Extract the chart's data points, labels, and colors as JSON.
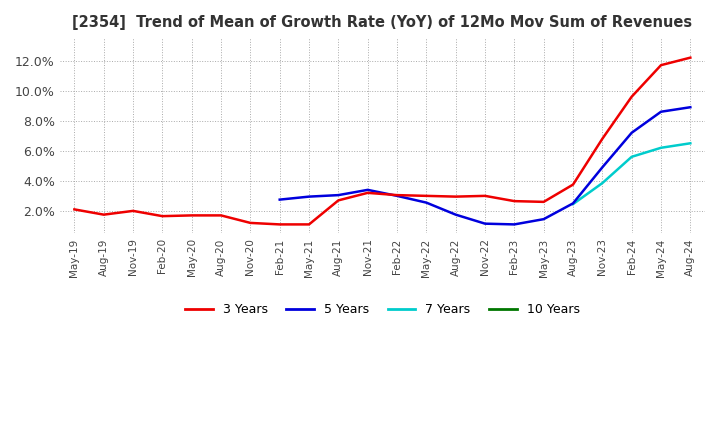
{
  "title": "[2354]  Trend of Mean of Growth Rate (YoY) of 12Mo Mov Sum of Revenues",
  "ylim": [
    0.005,
    0.135
  ],
  "yticks": [
    0.02,
    0.04,
    0.06,
    0.08,
    0.1,
    0.12
  ],
  "ytick_labels": [
    "2.0%",
    "4.0%",
    "6.0%",
    "8.0%",
    "10.0%",
    "12.0%"
  ],
  "background_color": "#ffffff",
  "grid_color": "#aaaaaa",
  "line_colors": {
    "3y": "#ee0000",
    "5y": "#0000dd",
    "7y": "#00cccc",
    "10y": "#007700"
  },
  "legend_entries": [
    "3 Years",
    "5 Years",
    "7 Years",
    "10 Years"
  ],
  "legend_colors": [
    "#ee0000",
    "#0000dd",
    "#00cccc",
    "#007700"
  ],
  "x_labels": [
    "May-19",
    "Aug-19",
    "Nov-19",
    "Feb-20",
    "May-20",
    "Aug-20",
    "Nov-20",
    "Feb-21",
    "May-21",
    "Aug-21",
    "Nov-21",
    "Feb-22",
    "May-22",
    "Aug-22",
    "Nov-22",
    "Feb-23",
    "May-23",
    "Aug-23",
    "Nov-23",
    "Feb-24",
    "May-24",
    "Aug-24"
  ],
  "series_3y": [
    0.021,
    0.0175,
    0.02,
    0.0165,
    0.017,
    0.017,
    0.012,
    0.011,
    0.011,
    0.027,
    0.032,
    0.0305,
    0.03,
    0.0295,
    0.03,
    0.0265,
    0.026,
    0.0375,
    0.068,
    0.096,
    0.117,
    0.122
  ],
  "series_5y": [
    null,
    null,
    null,
    null,
    null,
    null,
    null,
    0.0275,
    0.0295,
    0.0305,
    0.034,
    0.03,
    0.0255,
    0.0175,
    0.0115,
    0.011,
    0.0145,
    0.025,
    0.049,
    0.072,
    0.086,
    0.089
  ],
  "series_7y": [
    null,
    null,
    null,
    null,
    null,
    null,
    null,
    null,
    null,
    null,
    null,
    null,
    null,
    null,
    null,
    null,
    null,
    0.0245,
    0.0385,
    0.056,
    0.062,
    0.065
  ],
  "series_10y": [
    null,
    null,
    null,
    null,
    null,
    null,
    null,
    null,
    null,
    null,
    null,
    null,
    null,
    null,
    null,
    null,
    null,
    null,
    null,
    null,
    null,
    null
  ]
}
